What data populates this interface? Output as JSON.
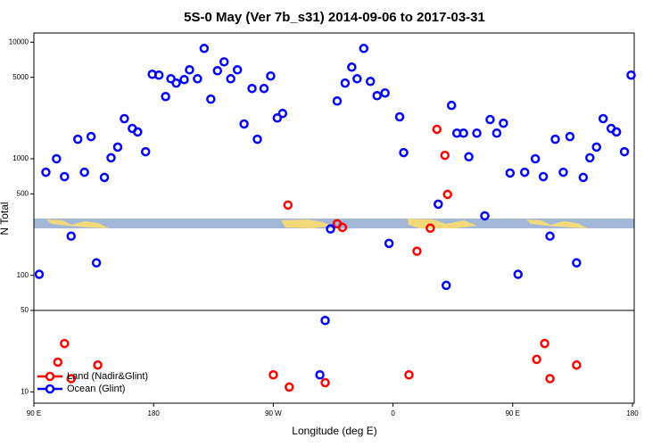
{
  "chart_data": {
    "type": "scatter",
    "title": "5S-0 May (Ver 7b_s31)   2014-09-06 to 2017-03-31",
    "x_label": "Longitude (deg E)",
    "y_label": "N Total",
    "xlim": [
      90,
      540
    ],
    "ylim": [
      8,
      12000
    ],
    "log_y": true,
    "hline": 50,
    "legend": "bottomleft",
    "xticks": [
      {
        "value": 90,
        "label": "90 E"
      },
      180,
      {
        "value": 270,
        "label": "90 W"
      },
      {
        "value": 360,
        "label": "0"
      },
      {
        "value": 450,
        "label": "90 E"
      },
      {
        "value": 540,
        "label": "180"
      }
    ],
    "yticks": [
      10,
      50,
      100,
      500,
      1000,
      5000,
      10000
    ],
    "series": [
      {
        "name": "Land (Nadir&Glint)",
        "color": "#ff0000",
        "x": [
          113,
          108,
          118,
          138,
          270,
          282,
          281,
          309,
          318,
          322,
          372,
          378,
          388,
          393,
          399,
          401,
          468,
          474,
          478,
          498
        ],
        "values": [
          26,
          18,
          13,
          17,
          14,
          11,
          401,
          12,
          277,
          258,
          14,
          161,
          254,
          1790,
          1070,
          495,
          19,
          26,
          13,
          17
        ]
      },
      {
        "name": "Ocean (Glint)",
        "color": "#0000ff",
        "x": [
          94,
          99,
          107,
          113,
          118,
          123,
          128,
          133,
          137,
          143,
          148,
          153,
          158,
          164,
          168,
          174,
          179,
          184,
          189,
          193,
          197,
          203,
          207,
          213,
          218,
          223,
          228,
          233,
          238,
          243,
          248,
          254,
          258,
          263,
          268,
          273,
          277,
          309,
          305,
          313,
          318,
          324,
          329,
          333,
          338,
          343,
          348,
          354,
          357,
          365,
          368,
          394,
          400,
          404,
          408,
          413,
          417,
          423,
          429,
          433,
          438,
          443,
          448,
          454,
          459,
          467,
          473,
          478,
          482,
          488,
          493,
          498,
          503,
          508,
          513,
          518,
          524,
          528,
          534,
          539
        ],
        "values": [
          102,
          767,
          1000,
          703,
          217,
          1470,
          767,
          1550,
          128,
          692,
          1020,
          1260,
          2210,
          1820,
          1700,
          1150,
          5310,
          5220,
          3420,
          4860,
          4460,
          4780,
          5800,
          4860,
          8850,
          3250,
          5700,
          6790,
          4860,
          5800,
          1990,
          4010,
          1470,
          4010,
          5130,
          2240,
          2450,
          41,
          14,
          250,
          3130,
          4460,
          6110,
          4860,
          8850,
          4610,
          3480,
          3670,
          188,
          2290,
          1130,
          408,
          82,
          2870,
          1660,
          1660,
          1040,
          1660,
          324,
          2170,
          1660,
          2020,
          755,
          102,
          767,
          1000,
          703,
          217,
          1470,
          767,
          1550,
          128,
          692,
          1020,
          1260,
          2210,
          1820,
          1700,
          1150,
          5220
        ]
      }
    ]
  }
}
